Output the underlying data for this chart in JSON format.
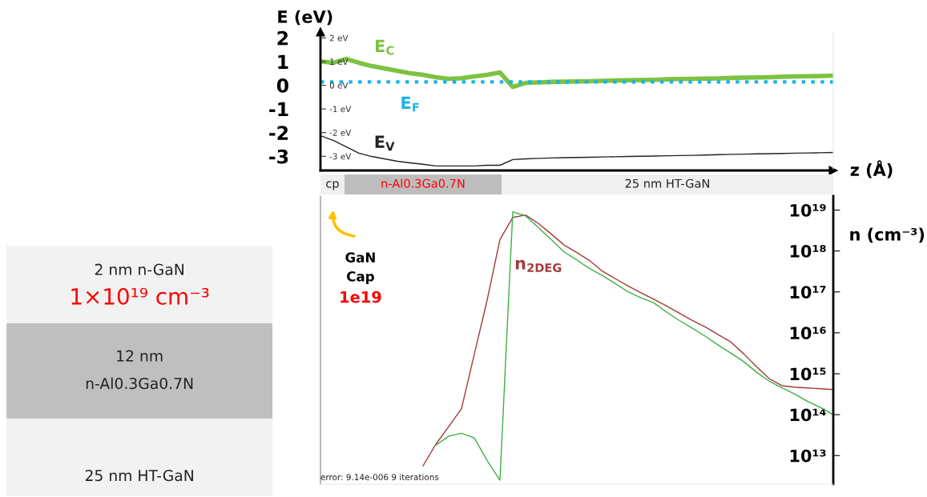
{
  "chart_data": [
    {
      "type": "line",
      "xlabel": "z (Å)",
      "ylabel": "E (eV)",
      "tick_labels": "y",
      "categories": [
        null,
        null,
        null,
        null,
        null,
        null,
        null,
        null,
        null,
        null,
        null,
        null,
        null,
        null,
        null,
        null,
        null,
        null,
        null,
        null,
        null,
        null,
        null,
        null,
        null,
        null,
        null,
        null,
        null,
        null,
        null,
        null,
        null,
        null,
        null,
        null,
        null,
        null,
        null,
        null,
        null
      ],
      "series": [
        {
          "name": "E$_{C}$",
          "color": "#7dc242",
          "values": [
            1.01,
            0.95,
            1.11,
            0.95,
            0.81,
            0.71,
            0.61,
            0.51,
            0.44,
            0.34,
            0.27,
            0.3,
            0.37,
            0.44,
            0.54,
            -0.07,
            0.1,
            0.12,
            0.14,
            0.15,
            0.16,
            0.17,
            0.19,
            0.2,
            0.21,
            0.22,
            0.23,
            0.25,
            0.26,
            0.27,
            0.28,
            0.29,
            0.31,
            0.32,
            0.33,
            0.34,
            0.36,
            0.37,
            0.38,
            0.39,
            0.41
          ]
        },
        {
          "name": "E$_{F}$",
          "color": "#1ab2e8",
          "line_style": "dotted",
          "values": [
            0.14,
            0.14,
            0.14,
            0.14,
            0.14,
            0.14,
            0.14,
            0.14,
            0.14,
            0.14,
            0.14,
            0.14,
            0.14,
            0.14,
            0.14,
            0.14,
            0.14,
            0.14,
            0.14,
            0.14,
            0.14,
            0.14,
            0.14,
            0.14,
            0.14,
            0.14,
            0.14,
            0.14,
            0.14,
            0.14,
            0.14,
            0.14,
            0.14,
            0.14,
            0.14,
            0.14,
            0.14,
            0.14,
            0.14,
            0.14,
            0.14
          ]
        },
        {
          "name": "E$_{V}$",
          "color": "#222222",
          "values": [
            -2.13,
            -2.33,
            -2.6,
            -2.87,
            -3.01,
            -3.11,
            -3.21,
            -3.28,
            -3.34,
            -3.41,
            -3.41,
            -3.41,
            -3.41,
            -3.38,
            -3.38,
            -3.14,
            -3.11,
            -3.09,
            -3.07,
            -3.06,
            -3.05,
            -3.04,
            -3.03,
            -3.02,
            -3.01,
            -3.0,
            -2.99,
            -2.98,
            -2.97,
            -2.96,
            -2.95,
            -2.93,
            -2.92,
            -2.91,
            -2.9,
            -2.89,
            -2.88,
            -2.87,
            -2.86,
            -2.85,
            -2.84
          ]
        }
      ],
      "ylim": [
        -3.6,
        2.25
      ],
      "yticks": [
        2,
        1,
        0,
        -1,
        -2,
        -3
      ],
      "y2lim": [
        -3.6,
        2.25
      ],
      "y2ticks": [
        {
          "value": 2,
          "label": "2 eV"
        },
        {
          "value": 1,
          "label": "1 eV"
        },
        {
          "value": 0,
          "label": "0 eV"
        },
        {
          "value": -1,
          "label": "-1 eV"
        },
        {
          "value": -2,
          "label": "-2 eV"
        },
        {
          "value": -3,
          "label": "-3 eV"
        }
      ]
    },
    {
      "type": "other",
      "categories": [
        "cp",
        "n-Al0.3Ga0.7N",
        "25 nm HT-GaN"
      ],
      "colors": [
        "#efefef",
        "#bdbdbd",
        "#f0f0f0"
      ]
    },
    {
      "type": "line",
      "ylabel": "n (cm⁻³)",
      "log": true,
      "tick_labels": "y",
      "categories": [
        null,
        null,
        null,
        null,
        null,
        null,
        null,
        null,
        null,
        null,
        null,
        null,
        null,
        null,
        null,
        null,
        null,
        null,
        null,
        null,
        null,
        null,
        null,
        null,
        null,
        null,
        null,
        null,
        null,
        null,
        null,
        null,
        null,
        null,
        null,
        null,
        null,
        null,
        null,
        null,
        null
      ],
      "series": [
        {
          "name": "n$_{2DEG}$",
          "color": "#a33a3a",
          "values": [
            null,
            null,
            null,
            null,
            null,
            null,
            null,
            null,
            5600000000000.0,
            19000000000000.0,
            51000000000000.0,
            140000000000000.0,
            3000000000000000.0,
            6.3e+16,
            1.9e+18,
            6.6e+18,
            7.6e+18,
            4.7e+18,
            2.6e+18,
            1.4e+18,
            9.1e+17,
            5.8e+17,
            3.2e+17,
            2.1e+17,
            1.4e+17,
            9.5e+16,
            6.6e+16,
            4.5e+16,
            3e+16,
            2e+16,
            1.4e+16,
            9100000000000000.0,
            6000000000000000.0,
            3100000000000000.0,
            1500000000000000.0,
            760000000000000.0,
            510000000000000.0,
            470000000000000.0,
            450000000000000.0,
            430000000000000.0,
            410000000000000.0
          ]
        },
        {
          "color": "#3cb043",
          "values": [
            null,
            null,
            null,
            null,
            null,
            null,
            null,
            null,
            null,
            18000000000000.0,
            30000000000000.0,
            35000000000000.0,
            27000000000000.0,
            7600000000000.0,
            2500000000000.0,
            9.1e+18,
            7.2e+18,
            3.7e+18,
            1.9e+18,
            9.5e+17,
            6e+17,
            3.7e+17,
            2.5e+17,
            1.6e+17,
            1e+17,
            7.2e+16,
            5.4e+16,
            3.2e+16,
            2e+16,
            1.3e+16,
            8300000000000000.0,
            5100000000000000.0,
            3200000000000000.0,
            2000000000000000.0,
            1100000000000000.0,
            660000000000000.0,
            450000000000000.0,
            320000000000000.0,
            210000000000000.0,
            150000000000000.0,
            100000000000000.0
          ]
        }
      ],
      "ylim": [
        2000000000000.0,
        2.2e+19
      ],
      "yticks": [
        {
          "value": 1e+19,
          "label": "10¹⁹"
        },
        {
          "value": 1e+18,
          "label": "10¹⁸"
        },
        {
          "value": 1e+17,
          "label": "10¹⁷"
        },
        {
          "value": 1e+16,
          "label": "10¹⁶"
        },
        {
          "value": 1000000000000000.0,
          "label": "10¹⁵"
        },
        {
          "value": 100000000000000.0,
          "label": "10¹⁴"
        },
        {
          "value": 10000000000000.0,
          "label": "10¹³"
        }
      ],
      "annotations": [
        "GaN\nCap",
        "1e19",
        "error: 9.14e-006 9 iterations"
      ]
    },
    {
      "type": "other",
      "categories": [
        "2 nm n-GaN\n1×10¹⁹ cm⁻³",
        "12 nm\nn-Al0.3Ga0.7N",
        "25 nm HT-GaN"
      ],
      "colors": [
        "#f2f2f2",
        "#bfbfbf",
        "#f2f2f2"
      ]
    }
  ]
}
